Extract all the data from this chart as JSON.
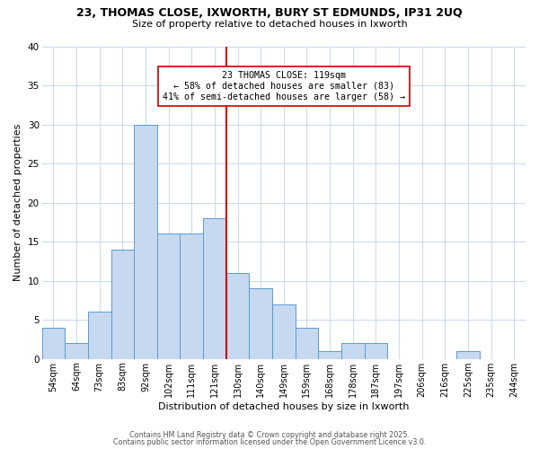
{
  "title": "23, THOMAS CLOSE, IXWORTH, BURY ST EDMUNDS, IP31 2UQ",
  "subtitle": "Size of property relative to detached houses in Ixworth",
  "xlabel": "Distribution of detached houses by size in Ixworth",
  "ylabel": "Number of detached properties",
  "bin_labels": [
    "54sqm",
    "64sqm",
    "73sqm",
    "83sqm",
    "92sqm",
    "102sqm",
    "111sqm",
    "121sqm",
    "130sqm",
    "140sqm",
    "149sqm",
    "159sqm",
    "168sqm",
    "178sqm",
    "187sqm",
    "197sqm",
    "206sqm",
    "216sqm",
    "225sqm",
    "235sqm",
    "244sqm"
  ],
  "bar_heights": [
    4,
    2,
    6,
    14,
    30,
    16,
    16,
    18,
    11,
    9,
    7,
    4,
    1,
    2,
    2,
    0,
    0,
    0,
    1,
    0,
    0
  ],
  "bar_color": "#c6d9f1",
  "bar_edge_color": "#5b9bd5",
  "vline_color": "#cc0000",
  "vline_x_index": 7,
  "annotation_title": "23 THOMAS CLOSE: 119sqm",
  "annotation_line1": "← 58% of detached houses are smaller (83)",
  "annotation_line2": "41% of semi-detached houses are larger (58) →",
  "annotation_box_color": "#ffffff",
  "annotation_box_edge": "#cc0000",
  "ylim": [
    0,
    40
  ],
  "yticks": [
    0,
    5,
    10,
    15,
    20,
    25,
    30,
    35,
    40
  ],
  "footer1": "Contains HM Land Registry data © Crown copyright and database right 2025.",
  "footer2": "Contains public sector information licensed under the Open Government Licence v3.0.",
  "background_color": "#ffffff",
  "grid_color": "#c8d8ec"
}
